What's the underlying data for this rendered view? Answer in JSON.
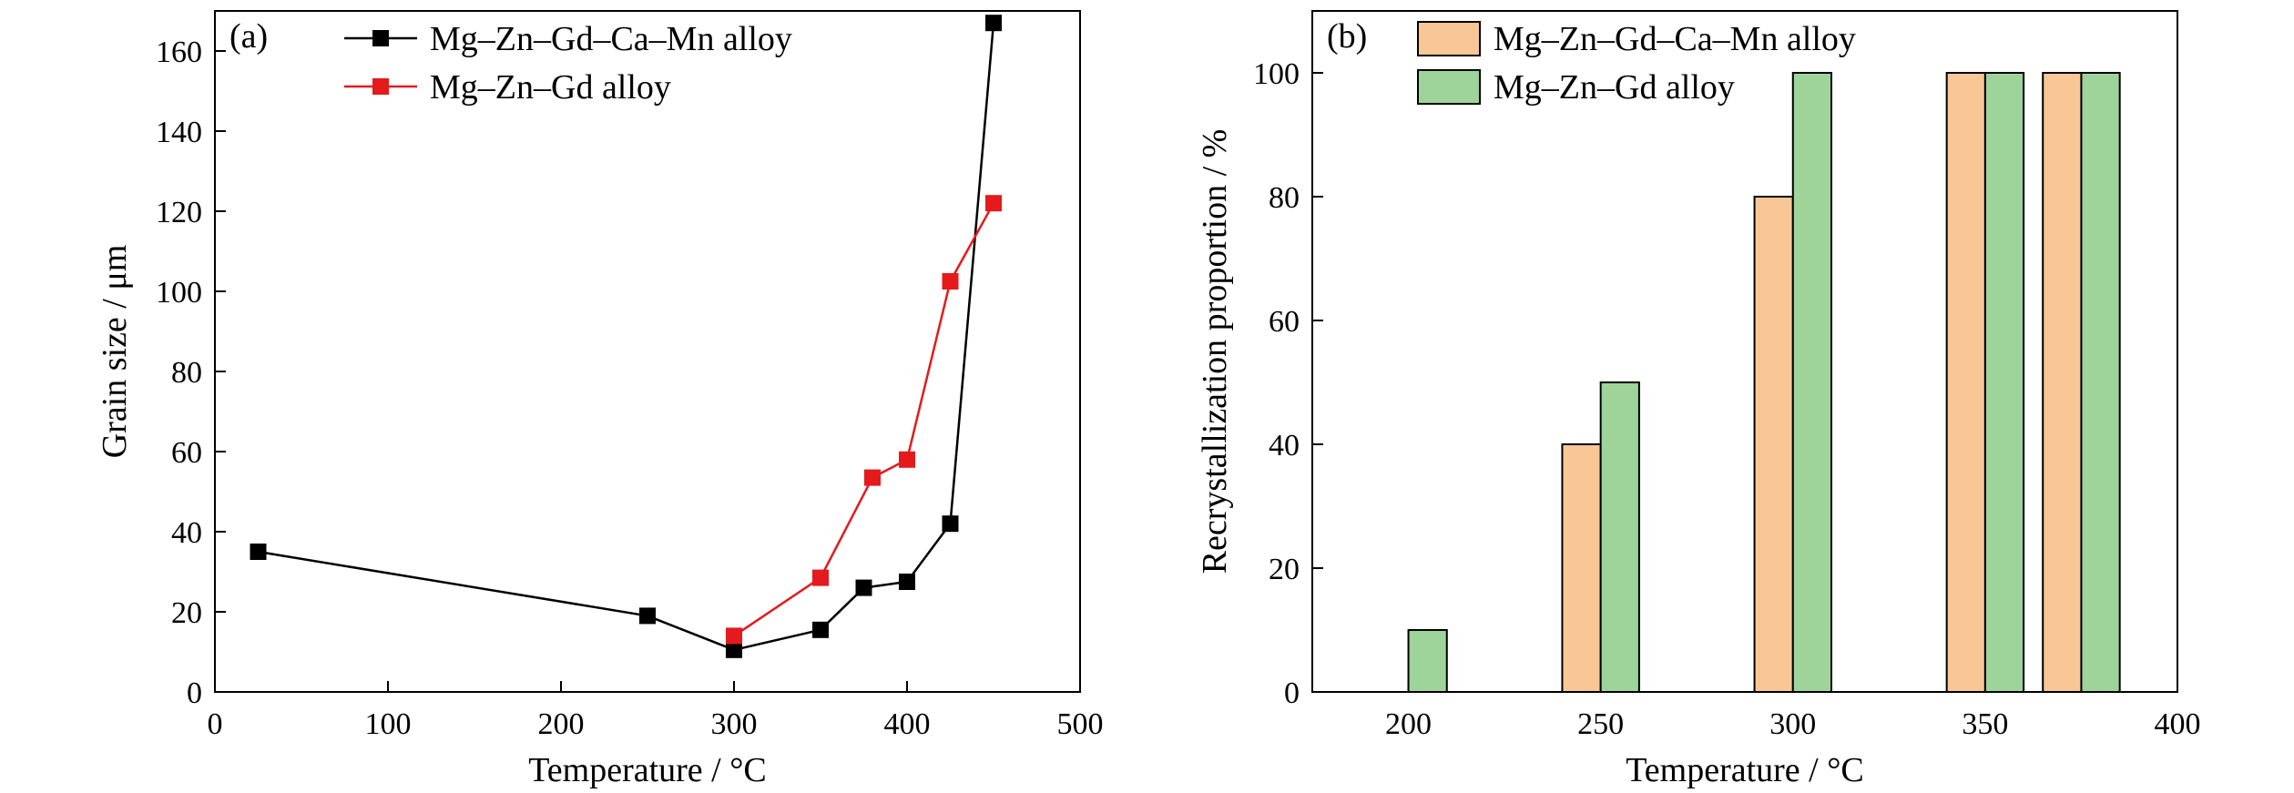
{
  "chart_data": [
    {
      "type": "line",
      "panel_label": "(a)",
      "xlabel": "Temperature / °C",
      "ylabel": "Grain size / μm",
      "xlim": [
        0,
        500
      ],
      "ylim": [
        0,
        170
      ],
      "x_ticks": [
        0,
        100,
        200,
        300,
        400,
        500
      ],
      "y_ticks": [
        0,
        20,
        40,
        60,
        80,
        100,
        120,
        140,
        160
      ],
      "legend_position": "top-left",
      "grid": false,
      "series": [
        {
          "name": "Mg–Zn–Gd–Ca–Mn alloy",
          "color": "#000000",
          "marker": "square",
          "x": [
            25,
            250,
            300,
            350,
            375,
            400,
            425,
            450
          ],
          "y": [
            35,
            19,
            10.5,
            15.5,
            26,
            27.5,
            42,
            167
          ]
        },
        {
          "name": "Mg–Zn–Gd alloy",
          "color": "#e41a1c",
          "marker": "square",
          "x": [
            300,
            350,
            380,
            400,
            425,
            450
          ],
          "y": [
            14,
            28.5,
            53.5,
            58,
            102.5,
            122
          ]
        }
      ]
    },
    {
      "type": "bar",
      "panel_label": "(b)",
      "xlabel": "Temperature / °C",
      "ylabel": "Recrystallization proportion / %",
      "xlim": [
        175,
        400
      ],
      "ylim": [
        0,
        110
      ],
      "x_ticks": [
        200,
        250,
        300,
        350,
        400
      ],
      "y_ticks": [
        0,
        20,
        40,
        60,
        80,
        100
      ],
      "bar_width": 10,
      "legend_position": "top-left",
      "grid": false,
      "series": [
        {
          "name": "Mg–Zn–Gd–Ca–Mn alloy",
          "color": "#f9c696",
          "x": [
            200,
            250,
            300,
            350,
            375
          ],
          "values": [
            0,
            40,
            80,
            100,
            100
          ]
        },
        {
          "name": "Mg–Zn–Gd alloy",
          "color": "#9ed49a",
          "x": [
            200,
            250,
            300,
            350,
            375
          ],
          "values": [
            10,
            50,
            100,
            100,
            100
          ]
        }
      ]
    }
  ]
}
